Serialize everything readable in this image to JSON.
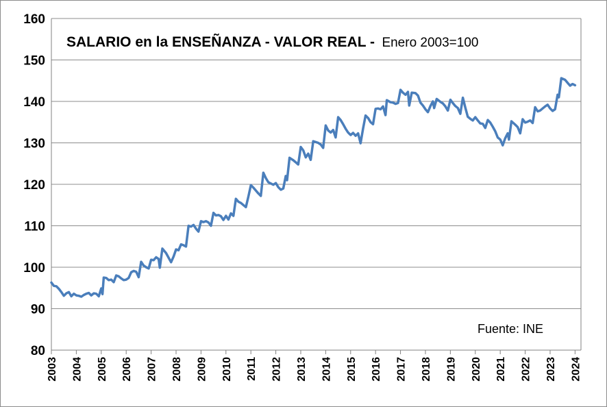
{
  "chart_data": {
    "type": "line",
    "title": "SALARIO en la ENSEÑANZA - VALOR REAL -",
    "subtitle": "Enero 2003=100",
    "source": "Fuente: INE",
    "ylim": [
      80,
      160
    ],
    "yticks": [
      "80",
      "90",
      "100",
      "110",
      "120",
      "130",
      "140",
      "150",
      "160"
    ],
    "xlim": [
      2003,
      2024.1
    ],
    "xticks": [
      "2003",
      "2004",
      "2005",
      "2006",
      "2007",
      "2008",
      "2009",
      "2010",
      "2011",
      "2012",
      "2013",
      "2014",
      "2015",
      "2016",
      "2017",
      "2018",
      "2019",
      "2020",
      "2021",
      "2022",
      "2023",
      "2024"
    ],
    "grid": true,
    "line_color": "#4a7ebb",
    "series": [
      {
        "points": [
          [
            2003.0,
            96.3
          ],
          [
            2003.1,
            95.5
          ],
          [
            2003.2,
            95.4
          ],
          [
            2003.3,
            94.8
          ],
          [
            2003.4,
            94.0
          ],
          [
            2003.5,
            93.1
          ],
          [
            2003.6,
            93.7
          ],
          [
            2003.7,
            94.0
          ],
          [
            2003.8,
            93.0
          ],
          [
            2003.9,
            93.6
          ],
          [
            2004.0,
            93.2
          ],
          [
            2004.1,
            93.1
          ],
          [
            2004.2,
            92.9
          ],
          [
            2004.3,
            93.3
          ],
          [
            2004.4,
            93.6
          ],
          [
            2004.5,
            93.8
          ],
          [
            2004.6,
            93.2
          ],
          [
            2004.7,
            93.7
          ],
          [
            2004.8,
            93.6
          ],
          [
            2004.9,
            93.0
          ],
          [
            2005.0,
            94.9
          ],
          [
            2005.05,
            93.5
          ],
          [
            2005.1,
            97.5
          ],
          [
            2005.2,
            97.4
          ],
          [
            2005.3,
            96.9
          ],
          [
            2005.4,
            97.0
          ],
          [
            2005.5,
            96.4
          ],
          [
            2005.6,
            98.0
          ],
          [
            2005.7,
            97.8
          ],
          [
            2005.8,
            97.3
          ],
          [
            2005.9,
            96.9
          ],
          [
            2006.0,
            97.0
          ],
          [
            2006.1,
            97.4
          ],
          [
            2006.2,
            98.8
          ],
          [
            2006.3,
            99.1
          ],
          [
            2006.4,
            98.9
          ],
          [
            2006.5,
            97.6
          ],
          [
            2006.6,
            101.3
          ],
          [
            2006.7,
            100.4
          ],
          [
            2006.8,
            100.0
          ],
          [
            2006.9,
            99.7
          ],
          [
            2007.0,
            101.8
          ],
          [
            2007.1,
            101.7
          ],
          [
            2007.2,
            102.4
          ],
          [
            2007.3,
            102.0
          ],
          [
            2007.35,
            99.9
          ],
          [
            2007.45,
            104.5
          ],
          [
            2007.6,
            103.4
          ],
          [
            2007.7,
            102.3
          ],
          [
            2007.8,
            101.2
          ],
          [
            2007.9,
            102.6
          ],
          [
            2008.0,
            104.3
          ],
          [
            2008.1,
            104.1
          ],
          [
            2008.2,
            105.5
          ],
          [
            2008.3,
            105.3
          ],
          [
            2008.4,
            105.0
          ],
          [
            2008.5,
            110.0
          ],
          [
            2008.6,
            109.8
          ],
          [
            2008.7,
            110.2
          ],
          [
            2008.8,
            109.3
          ],
          [
            2008.9,
            108.6
          ],
          [
            2009.0,
            111.1
          ],
          [
            2009.1,
            110.9
          ],
          [
            2009.2,
            111.1
          ],
          [
            2009.3,
            110.8
          ],
          [
            2009.4,
            110.0
          ],
          [
            2009.5,
            113.1
          ],
          [
            2009.6,
            112.5
          ],
          [
            2009.7,
            112.6
          ],
          [
            2009.8,
            112.3
          ],
          [
            2009.9,
            111.4
          ],
          [
            2010.0,
            112.4
          ],
          [
            2010.1,
            111.5
          ],
          [
            2010.2,
            113.0
          ],
          [
            2010.3,
            112.4
          ],
          [
            2010.4,
            116.5
          ],
          [
            2010.5,
            115.8
          ],
          [
            2010.6,
            115.5
          ],
          [
            2010.7,
            115.0
          ],
          [
            2010.8,
            114.5
          ],
          [
            2010.9,
            117.0
          ],
          [
            2011.0,
            119.8
          ],
          [
            2011.1,
            119.2
          ],
          [
            2011.2,
            118.5
          ],
          [
            2011.3,
            117.8
          ],
          [
            2011.4,
            117.2
          ],
          [
            2011.5,
            122.8
          ],
          [
            2011.6,
            121.5
          ],
          [
            2011.7,
            120.5
          ],
          [
            2011.8,
            120.2
          ],
          [
            2011.9,
            119.9
          ],
          [
            2012.0,
            120.3
          ],
          [
            2012.1,
            119.3
          ],
          [
            2012.2,
            118.7
          ],
          [
            2012.3,
            119.0
          ],
          [
            2012.4,
            122.0
          ],
          [
            2012.45,
            121.0
          ],
          [
            2012.55,
            126.4
          ],
          [
            2012.7,
            125.8
          ],
          [
            2012.8,
            125.3
          ],
          [
            2012.9,
            124.8
          ],
          [
            2013.0,
            129.0
          ],
          [
            2013.1,
            128.2
          ],
          [
            2013.2,
            126.5
          ],
          [
            2013.3,
            127.4
          ],
          [
            2013.4,
            125.9
          ],
          [
            2013.5,
            130.4
          ],
          [
            2013.6,
            130.2
          ],
          [
            2013.7,
            130.0
          ],
          [
            2013.8,
            129.6
          ],
          [
            2013.9,
            128.8
          ],
          [
            2014.0,
            134.2
          ],
          [
            2014.1,
            133.0
          ],
          [
            2014.2,
            132.5
          ],
          [
            2014.3,
            133.1
          ],
          [
            2014.4,
            131.3
          ],
          [
            2014.5,
            136.2
          ],
          [
            2014.6,
            135.5
          ],
          [
            2014.7,
            134.5
          ],
          [
            2014.8,
            133.4
          ],
          [
            2014.9,
            132.5
          ],
          [
            2015.0,
            131.9
          ],
          [
            2015.1,
            132.4
          ],
          [
            2015.2,
            131.7
          ],
          [
            2015.3,
            132.3
          ],
          [
            2015.4,
            129.9
          ],
          [
            2015.5,
            133.5
          ],
          [
            2015.6,
            136.6
          ],
          [
            2015.7,
            136.0
          ],
          [
            2015.8,
            135.0
          ],
          [
            2015.9,
            134.5
          ],
          [
            2016.0,
            138.2
          ],
          [
            2016.1,
            138.3
          ],
          [
            2016.2,
            138.1
          ],
          [
            2016.3,
            138.8
          ],
          [
            2016.4,
            136.7
          ],
          [
            2016.45,
            140.3
          ],
          [
            2016.6,
            139.8
          ],
          [
            2016.7,
            139.7
          ],
          [
            2016.8,
            139.4
          ],
          [
            2016.9,
            139.6
          ],
          [
            2017.0,
            142.8
          ],
          [
            2017.1,
            142.1
          ],
          [
            2017.2,
            141.6
          ],
          [
            2017.3,
            142.3
          ],
          [
            2017.35,
            139.0
          ],
          [
            2017.45,
            142.1
          ],
          [
            2017.6,
            142.0
          ],
          [
            2017.7,
            141.4
          ],
          [
            2017.8,
            139.7
          ],
          [
            2017.9,
            139.0
          ],
          [
            2018.0,
            138.1
          ],
          [
            2018.1,
            137.4
          ],
          [
            2018.2,
            138.9
          ],
          [
            2018.3,
            140.0
          ],
          [
            2018.35,
            138.4
          ],
          [
            2018.45,
            140.6
          ],
          [
            2018.6,
            139.9
          ],
          [
            2018.7,
            139.5
          ],
          [
            2018.8,
            138.8
          ],
          [
            2018.9,
            137.8
          ],
          [
            2019.0,
            140.4
          ],
          [
            2019.1,
            139.6
          ],
          [
            2019.2,
            138.9
          ],
          [
            2019.3,
            138.4
          ],
          [
            2019.4,
            137.0
          ],
          [
            2019.5,
            140.9
          ],
          [
            2019.6,
            138.5
          ],
          [
            2019.7,
            136.3
          ],
          [
            2019.8,
            135.8
          ],
          [
            2019.9,
            135.4
          ],
          [
            2020.0,
            136.2
          ],
          [
            2020.1,
            135.4
          ],
          [
            2020.2,
            134.7
          ],
          [
            2020.3,
            134.6
          ],
          [
            2020.4,
            133.6
          ],
          [
            2020.5,
            135.5
          ],
          [
            2020.6,
            134.9
          ],
          [
            2020.7,
            133.9
          ],
          [
            2020.8,
            132.8
          ],
          [
            2020.9,
            131.3
          ],
          [
            2021.0,
            130.8
          ],
          [
            2021.1,
            129.4
          ],
          [
            2021.2,
            131.1
          ],
          [
            2021.3,
            132.3
          ],
          [
            2021.35,
            130.8
          ],
          [
            2021.45,
            135.2
          ],
          [
            2021.6,
            134.4
          ],
          [
            2021.7,
            133.8
          ],
          [
            2021.8,
            132.3
          ],
          [
            2021.9,
            135.7
          ],
          [
            2022.0,
            134.9
          ],
          [
            2022.1,
            135.1
          ],
          [
            2022.2,
            135.4
          ],
          [
            2022.3,
            134.8
          ],
          [
            2022.4,
            138.6
          ],
          [
            2022.5,
            137.6
          ],
          [
            2022.6,
            137.8
          ],
          [
            2022.7,
            138.3
          ],
          [
            2022.8,
            138.8
          ],
          [
            2022.9,
            139.2
          ],
          [
            2023.0,
            138.3
          ],
          [
            2023.1,
            137.7
          ],
          [
            2023.2,
            138.1
          ],
          [
            2023.3,
            141.6
          ],
          [
            2023.35,
            141.0
          ],
          [
            2023.45,
            145.6
          ],
          [
            2023.6,
            145.2
          ],
          [
            2023.7,
            144.5
          ],
          [
            2023.8,
            143.8
          ],
          [
            2023.9,
            144.2
          ],
          [
            2024.0,
            143.9
          ]
        ]
      }
    ]
  }
}
